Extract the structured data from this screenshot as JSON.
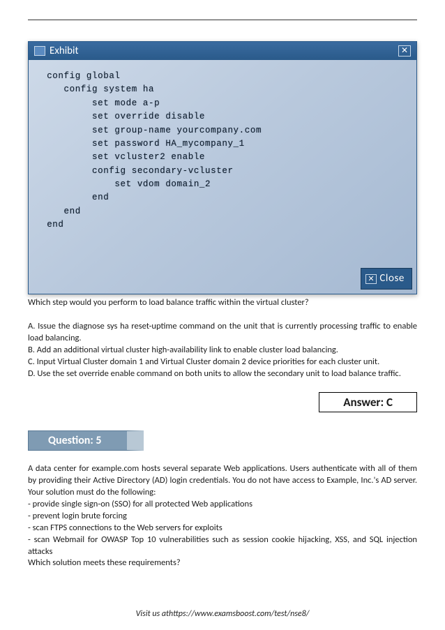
{
  "exhibit": {
    "title": "Exhibit",
    "close_x": "✕",
    "terminal_text": "  config global\n     config system ha\n          set mode a-p\n          set override disable\n          set group-name yourcompany.com\n          set password HA_mycompany_1\n          set vcluster2 enable\n          config secondary-vcluster\n              set vdom domain_2\n          end\n     end\n  end",
    "close_label": "Close",
    "titlebar_bg": "#2a5a8a",
    "terminal_bg_start": "#cdd9e8",
    "terminal_bg_end": "#a5b9d2",
    "terminal_text_color": "#0c1a2a"
  },
  "question4": {
    "prompt": "Which step would you perform to load balance traffic within the virtual cluster?",
    "option_a": "A. Issue the diagnose sys ha reset-uptime command on the unit that is currently processing traffic to enable load balancing.",
    "option_b": "B. Add an additional virtual cluster high-availability link to enable cluster load balancing.",
    "option_c": "C. Input Virtual Cluster domain 1 and Virtual Cluster domain 2 device priorities for each cluster unit.",
    "option_d": "D. Use the set override enable command on both units to allow the secondary unit to load balance traffic.",
    "answer_label": "Answer: C"
  },
  "question5": {
    "header": "Question: 5",
    "intro": "A data center for example.com hosts several separate Web applications. Users authenticate with all of them by providing their Active Directory (AD) login credentials. You do not have access to Example, Inc.'s AD server. Your solution must do the following:",
    "req1": "- provide single sign-on (SSO) for all protected Web applications",
    "req2": "- prevent login brute forcing",
    "req3": "- scan FTPS connections to the Web servers for exploits",
    "req4": "- scan Webmail for OWASP Top 10 vulnerabilities such as session cookie hijacking, XSS, and SQL injection attacks",
    "closing": "Which solution meets these requirements?"
  },
  "footer": {
    "text": "Visit us athttps://www.examsboost.com/test/nse8/"
  }
}
